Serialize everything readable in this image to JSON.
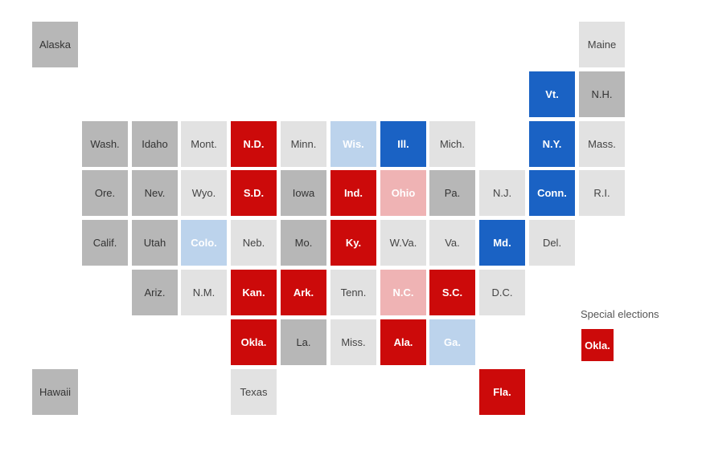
{
  "colors": {
    "dem_strong": "#1a62c4",
    "dem_lean": "#bcd3ec",
    "rep_strong": "#cc0a0a",
    "rep_lean": "#efb3b4",
    "no_race_dark": "#b7b7b7",
    "no_race_light": "#e2e2e2"
  },
  "states": [
    {
      "abbr": "Alaska",
      "col": 0,
      "row": 0,
      "status": "no_race_dark"
    },
    {
      "abbr": "Maine",
      "col": 11,
      "row": 0,
      "status": "no_race_light"
    },
    {
      "abbr": "Vt.",
      "col": 10,
      "row": 1,
      "status": "dem_strong"
    },
    {
      "abbr": "N.H.",
      "col": 11,
      "row": 1,
      "status": "no_race_dark"
    },
    {
      "abbr": "Wash.",
      "col": 1,
      "row": 2,
      "status": "no_race_dark"
    },
    {
      "abbr": "Idaho",
      "col": 2,
      "row": 2,
      "status": "no_race_dark"
    },
    {
      "abbr": "Mont.",
      "col": 3,
      "row": 2,
      "status": "no_race_light"
    },
    {
      "abbr": "N.D.",
      "col": 4,
      "row": 2,
      "status": "rep_strong"
    },
    {
      "abbr": "Minn.",
      "col": 5,
      "row": 2,
      "status": "no_race_light"
    },
    {
      "abbr": "Wis.",
      "col": 6,
      "row": 2,
      "status": "dem_lean"
    },
    {
      "abbr": "Ill.",
      "col": 7,
      "row": 2,
      "status": "dem_strong"
    },
    {
      "abbr": "Mich.",
      "col": 8,
      "row": 2,
      "status": "no_race_light"
    },
    {
      "abbr": "N.Y.",
      "col": 10,
      "row": 2,
      "status": "dem_strong"
    },
    {
      "abbr": "Mass.",
      "col": 11,
      "row": 2,
      "status": "no_race_light"
    },
    {
      "abbr": "Ore.",
      "col": 1,
      "row": 3,
      "status": "no_race_dark"
    },
    {
      "abbr": "Nev.",
      "col": 2,
      "row": 3,
      "status": "no_race_dark"
    },
    {
      "abbr": "Wyo.",
      "col": 3,
      "row": 3,
      "status": "no_race_light"
    },
    {
      "abbr": "S.D.",
      "col": 4,
      "row": 3,
      "status": "rep_strong"
    },
    {
      "abbr": "Iowa",
      "col": 5,
      "row": 3,
      "status": "no_race_dark"
    },
    {
      "abbr": "Ind.",
      "col": 6,
      "row": 3,
      "status": "rep_strong"
    },
    {
      "abbr": "Ohio",
      "col": 7,
      "row": 3,
      "status": "rep_lean"
    },
    {
      "abbr": "Pa.",
      "col": 8,
      "row": 3,
      "status": "no_race_dark"
    },
    {
      "abbr": "N.J.",
      "col": 9,
      "row": 3,
      "status": "no_race_light"
    },
    {
      "abbr": "Conn.",
      "col": 10,
      "row": 3,
      "status": "dem_strong"
    },
    {
      "abbr": "R.I.",
      "col": 11,
      "row": 3,
      "status": "no_race_light"
    },
    {
      "abbr": "Calif.",
      "col": 1,
      "row": 4,
      "status": "no_race_dark"
    },
    {
      "abbr": "Utah",
      "col": 2,
      "row": 4,
      "status": "no_race_dark"
    },
    {
      "abbr": "Colo.",
      "col": 3,
      "row": 4,
      "status": "dem_lean"
    },
    {
      "abbr": "Neb.",
      "col": 4,
      "row": 4,
      "status": "no_race_light"
    },
    {
      "abbr": "Mo.",
      "col": 5,
      "row": 4,
      "status": "no_race_dark"
    },
    {
      "abbr": "Ky.",
      "col": 6,
      "row": 4,
      "status": "rep_strong"
    },
    {
      "abbr": "W.Va.",
      "col": 7,
      "row": 4,
      "status": "no_race_light"
    },
    {
      "abbr": "Va.",
      "col": 8,
      "row": 4,
      "status": "no_race_light"
    },
    {
      "abbr": "Md.",
      "col": 9,
      "row": 4,
      "status": "dem_strong"
    },
    {
      "abbr": "Del.",
      "col": 10,
      "row": 4,
      "status": "no_race_light"
    },
    {
      "abbr": "Ariz.",
      "col": 2,
      "row": 5,
      "status": "no_race_dark"
    },
    {
      "abbr": "N.M.",
      "col": 3,
      "row": 5,
      "status": "no_race_light"
    },
    {
      "abbr": "Kan.",
      "col": 4,
      "row": 5,
      "status": "rep_strong"
    },
    {
      "abbr": "Ark.",
      "col": 5,
      "row": 5,
      "status": "rep_strong"
    },
    {
      "abbr": "Tenn.",
      "col": 6,
      "row": 5,
      "status": "no_race_light"
    },
    {
      "abbr": "N.C.",
      "col": 7,
      "row": 5,
      "status": "rep_lean"
    },
    {
      "abbr": "S.C.",
      "col": 8,
      "row": 5,
      "status": "rep_strong"
    },
    {
      "abbr": "D.C.",
      "col": 9,
      "row": 5,
      "status": "no_race_light"
    },
    {
      "abbr": "Okla.",
      "col": 4,
      "row": 6,
      "status": "rep_strong"
    },
    {
      "abbr": "La.",
      "col": 5,
      "row": 6,
      "status": "no_race_dark"
    },
    {
      "abbr": "Miss.",
      "col": 6,
      "row": 6,
      "status": "no_race_light"
    },
    {
      "abbr": "Ala.",
      "col": 7,
      "row": 6,
      "status": "rep_strong"
    },
    {
      "abbr": "Ga.",
      "col": 8,
      "row": 6,
      "status": "dem_lean"
    },
    {
      "abbr": "Hawaii",
      "col": 0,
      "row": 7,
      "status": "no_race_dark"
    },
    {
      "abbr": "Texas",
      "col": 4,
      "row": 7,
      "status": "no_race_light"
    },
    {
      "abbr": "Fla.",
      "col": 9,
      "row": 7,
      "status": "rep_strong"
    }
  ],
  "special_elections": {
    "label": "Special elections",
    "states": [
      {
        "abbr": "Okla.",
        "status": "rep_strong"
      }
    ]
  }
}
